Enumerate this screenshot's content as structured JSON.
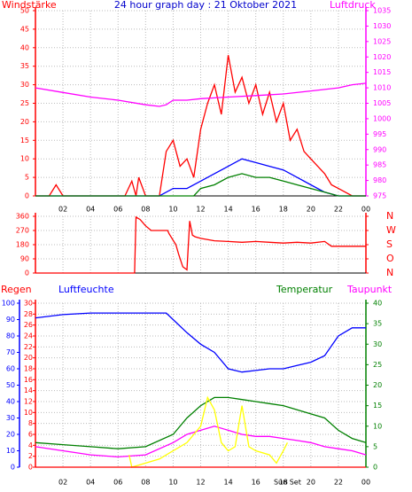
{
  "chart_data": [
    {
      "type": "line",
      "title": "24 hour graph day : 21 Oktober 2021",
      "y_label": "Windstärke",
      "ycolor": "#ff0000",
      "y2_label": "Luftdruck",
      "y2color": "#ff00ff",
      "xlim": [
        0,
        24
      ],
      "xticks": [
        {
          "value": 2,
          "label": "02"
        },
        {
          "value": 4,
          "label": "04"
        },
        {
          "value": 6,
          "label": "06"
        },
        {
          "value": 8,
          "label": "08"
        },
        10,
        12,
        14,
        16,
        18,
        20,
        22,
        {
          "value": 24,
          "label": "00"
        }
      ],
      "ylim": [
        0,
        50
      ],
      "yticks": [
        0,
        5,
        10,
        15,
        20,
        25,
        30,
        35,
        40,
        45,
        50
      ],
      "y2lim": [
        975,
        1035
      ],
      "y2ticks": [
        975,
        980,
        985,
        990,
        995,
        1000,
        1005,
        1010,
        1015,
        1020,
        1025,
        1030,
        1035
      ],
      "grid": "y",
      "series": [
        {
          "color": "#ff0000",
          "x": [
            0,
            1,
            1.5,
            2,
            5,
            6.5,
            7,
            7.3,
            7.5,
            8,
            9,
            9.5,
            10,
            10.5,
            11,
            11.5,
            12,
            12.5,
            13,
            13.5,
            14,
            14.5,
            15,
            15.5,
            16,
            16.5,
            17,
            17.5,
            18,
            18.5,
            19,
            19.5,
            20,
            20.5,
            21,
            21.5,
            22,
            23,
            24
          ],
          "values": [
            0,
            0,
            3,
            0,
            0,
            0,
            4,
            0,
            5,
            0,
            0,
            12,
            15,
            8,
            10,
            5,
            18,
            25,
            30,
            22,
            38,
            28,
            32,
            25,
            30,
            22,
            28,
            20,
            25,
            15,
            18,
            12,
            10,
            8,
            6,
            3,
            2,
            0,
            0
          ]
        },
        {
          "color": "#0000ff",
          "x": [
            0,
            9,
            10,
            11,
            12,
            13,
            14,
            15,
            16,
            17,
            18,
            19,
            20,
            21,
            22,
            24
          ],
          "values": [
            0,
            0,
            2,
            2,
            4,
            6,
            8,
            10,
            9,
            8,
            7,
            5,
            3,
            1,
            0,
            0
          ]
        },
        {
          "color": "#008000",
          "x": [
            0,
            11.5,
            12,
            13,
            14,
            15,
            16,
            17,
            18,
            19,
            20,
            21,
            22,
            24
          ],
          "values": [
            0,
            0,
            2,
            3,
            5,
            6,
            5,
            5,
            4,
            3,
            2,
            1,
            0,
            0
          ]
        },
        {
          "color": "#ff00ff",
          "axis": "y2",
          "x": [
            0,
            2,
            4,
            6,
            8,
            9,
            9.5,
            10,
            11,
            12,
            14,
            16,
            18,
            20,
            22,
            23,
            24
          ],
          "values": [
            1010,
            1008.5,
            1007,
            1006,
            1004.5,
            1004,
            1004.5,
            1006,
            1006,
            1006.5,
            1007,
            1007.5,
            1008,
            1009,
            1010,
            1011,
            1011.5
          ]
        }
      ]
    },
    {
      "type": "line",
      "ycolor": "#ff0000",
      "y2color": "#ff0000",
      "xlim": [
        0,
        24
      ],
      "xticks": [
        {
          "value": 2,
          "label": "02"
        },
        {
          "value": 4,
          "label": "04"
        },
        {
          "value": 6,
          "label": "06"
        },
        {
          "value": 8,
          "label": "08"
        },
        10,
        12,
        14,
        16,
        18,
        20,
        22,
        {
          "value": 24,
          "label": "00"
        }
      ],
      "ylim": [
        0,
        360
      ],
      "yticks": [
        0,
        90,
        180,
        270,
        360
      ],
      "y2lim": [
        0,
        360
      ],
      "y2ticks": [
        {
          "value": 0,
          "label": "N"
        },
        {
          "value": 90,
          "label": "O"
        },
        {
          "value": 180,
          "label": "S"
        },
        {
          "value": 270,
          "label": "W"
        },
        {
          "value": 360,
          "label": "N"
        }
      ],
      "grid": "y",
      "series": [
        {
          "color": "#ff0000",
          "x": [
            0,
            7.2,
            7.3,
            7.6,
            8,
            8.4,
            9.6,
            9.7,
            10.2,
            10.4,
            10.7,
            11,
            11.2,
            11.4,
            11.6,
            12,
            13,
            14,
            15,
            16,
            17,
            18,
            19,
            20,
            21,
            21.5,
            24
          ],
          "values": [
            0,
            0,
            355,
            340,
            300,
            270,
            270,
            250,
            180,
            120,
            40,
            20,
            330,
            240,
            230,
            220,
            205,
            200,
            195,
            200,
            195,
            190,
            195,
            190,
            200,
            170,
            170
          ]
        }
      ]
    },
    {
      "type": "line",
      "y3_label": "Regen",
      "y3color": "#ff0000",
      "y_label": "Luftfeuchte",
      "ycolor": "#0000ff",
      "y2_label": "Temperatur",
      "y2color": "#008000",
      "y2b_label": "Taupunkt",
      "y2bcolor": "#ff00ff",
      "annotation": {
        "text": "Sun Set",
        "x": 18.3
      },
      "xlim": [
        0,
        24
      ],
      "xticks": [
        {
          "value": 2,
          "label": "02"
        },
        {
          "value": 4,
          "label": "04"
        },
        {
          "value": 6,
          "label": "06"
        },
        {
          "value": 8,
          "label": "08"
        },
        10,
        12,
        14,
        16,
        18,
        20,
        22,
        {
          "value": 24,
          "label": "00"
        }
      ],
      "ylim": [
        0,
        100
      ],
      "yticks": [
        0,
        10,
        20,
        30,
        40,
        50,
        60,
        70,
        80,
        90,
        100
      ],
      "y3lim": [
        0,
        30
      ],
      "y3ticks": [
        0,
        2,
        4,
        6,
        8,
        10,
        12,
        14,
        16,
        18,
        20,
        22,
        24,
        26,
        28,
        30
      ],
      "y2lim": [
        0,
        40
      ],
      "y2ticks": [
        0,
        5,
        10,
        15,
        20,
        25,
        30,
        35,
        40
      ],
      "grid": "y3",
      "series": [
        {
          "color": "#0000ff",
          "x": [
            0,
            2,
            4,
            6,
            8,
            9.5,
            10,
            11,
            12,
            13,
            14,
            15,
            16,
            17,
            18,
            19,
            20,
            21,
            22,
            23,
            24
          ],
          "values": [
            91,
            93,
            94,
            94,
            94,
            94,
            90,
            82,
            75,
            70,
            60,
            58,
            59,
            60,
            60,
            62,
            64,
            68,
            80,
            85,
            85
          ]
        },
        {
          "color": "#008000",
          "axis": "y2",
          "x": [
            0,
            2,
            4,
            6,
            8,
            10,
            11,
            12,
            13,
            14,
            15,
            16,
            17,
            18,
            19,
            20,
            21,
            22,
            23,
            24
          ],
          "values": [
            6,
            5.5,
            5,
            4.5,
            5,
            8,
            12,
            15,
            17,
            17,
            16.5,
            16,
            15.5,
            15,
            14,
            13,
            12,
            9,
            7,
            6
          ]
        },
        {
          "color": "#ff00ff",
          "axis": "y2",
          "x": [
            0,
            2,
            4,
            6,
            8,
            10,
            11,
            12,
            13,
            14,
            15,
            16,
            17,
            18,
            19,
            20,
            21,
            22,
            23,
            24
          ],
          "values": [
            5,
            4,
            3,
            2.5,
            3,
            6,
            8,
            9,
            10,
            9,
            8,
            7.5,
            7.5,
            7,
            6.5,
            6,
            5,
            4.5,
            4,
            3
          ]
        },
        {
          "color": "#ffff00",
          "axis": "y2",
          "x": [
            6.8,
            7,
            8,
            9,
            10,
            11,
            12,
            12.5,
            13,
            13.5,
            14,
            14.5,
            15,
            15.5,
            16,
            17,
            17.5,
            18,
            18.3
          ],
          "values": [
            3,
            0,
            1,
            2,
            4,
            6,
            10,
            17,
            14,
            6,
            4,
            5,
            15,
            5,
            4,
            3,
            1,
            4,
            6
          ]
        },
        {
          "color": "#ff0000",
          "axis": "y3",
          "x": [
            0,
            24
          ],
          "values": [
            0,
            0
          ]
        }
      ]
    }
  ]
}
